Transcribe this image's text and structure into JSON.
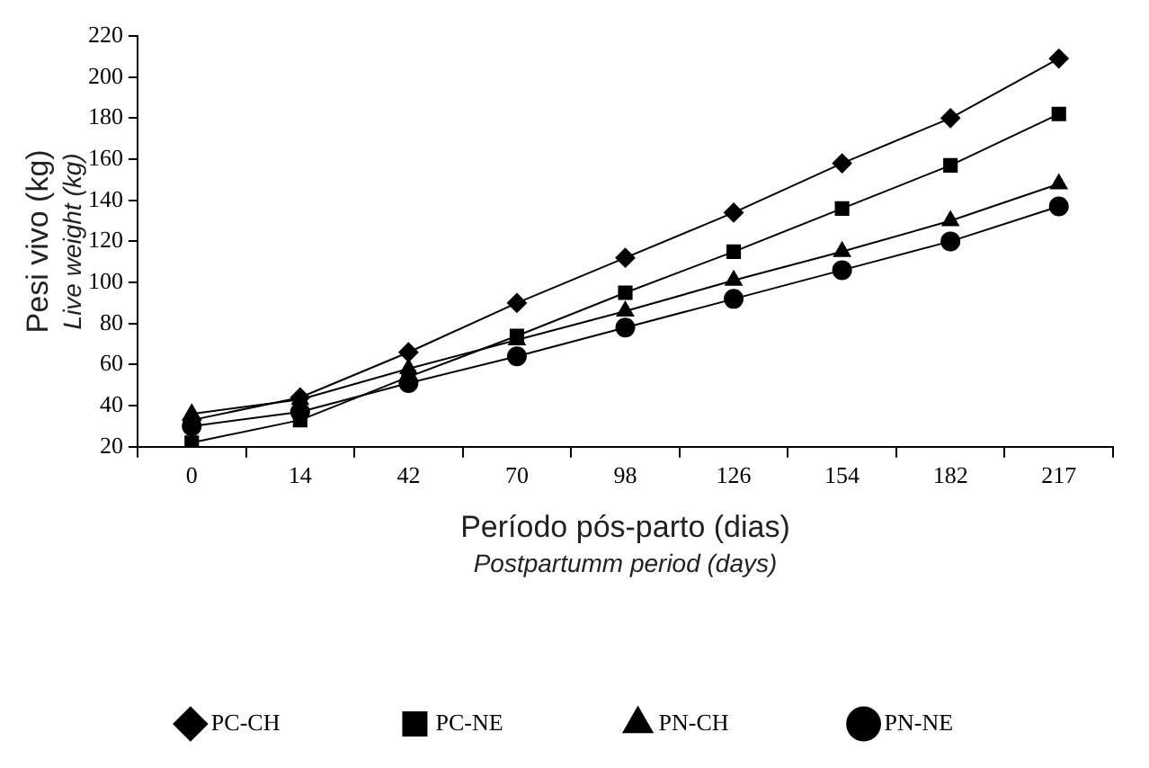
{
  "chart_data": {
    "type": "line",
    "xlabel": "Período pós-parto (dias)\nPostpartumm period (days)",
    "ylabel": "Pesi vivo (kg)\nLive weight (kg)",
    "categories": [
      "0",
      "14",
      "42",
      "70",
      "98",
      "126",
      "154",
      "182",
      "217"
    ],
    "ylim": [
      20,
      220
    ],
    "yticks": [
      20,
      40,
      60,
      80,
      100,
      120,
      140,
      160,
      180,
      200,
      220
    ],
    "grid": false,
    "legend": "bottom",
    "line_style": "solid",
    "series": [
      {
        "name": "PC-CH",
        "color": "#000000",
        "marker": "diamond",
        "values": [
          33,
          44,
          66,
          90,
          112,
          134,
          158,
          180,
          209
        ]
      },
      {
        "name": "PC-NE",
        "color": "#000000",
        "marker": "square",
        "values": [
          22,
          33,
          54,
          74,
          95,
          115,
          136,
          157,
          182
        ]
      },
      {
        "name": "PN-CH",
        "color": "#000000",
        "marker": "triangle",
        "values": [
          36,
          43,
          58,
          72,
          86,
          101,
          115,
          130,
          148
        ]
      },
      {
        "name": "PN-NE",
        "color": "#000000",
        "marker": "circle",
        "values": [
          30,
          37,
          51,
          64,
          78,
          92,
          106,
          120,
          137
        ]
      }
    ]
  }
}
